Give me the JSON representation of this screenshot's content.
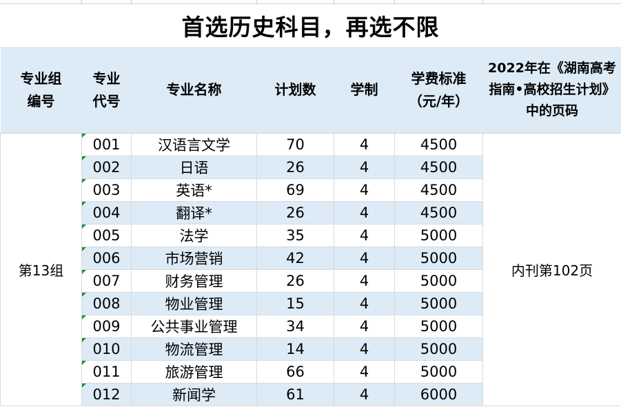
{
  "title": "首选历史科目，再选不限",
  "headers": {
    "group_no": "专业组编号",
    "code": "专业代号",
    "name": "专业名称",
    "plan": "计划数",
    "years": "学制",
    "fee": "学费标准（元/年）",
    "page": "2022年在《湖南高考指南•高校招生计划》中的页码"
  },
  "group": "第13组",
  "page_ref": "内刊第102页",
  "rows": [
    {
      "code": "001",
      "name": "汉语言文学",
      "plan": "70",
      "years": "4",
      "fee": "4500"
    },
    {
      "code": "002",
      "name": "日语",
      "plan": "26",
      "years": "4",
      "fee": "4500"
    },
    {
      "code": "003",
      "name": "英语*",
      "plan": "69",
      "years": "4",
      "fee": "4500"
    },
    {
      "code": "004",
      "name": "翻译*",
      "plan": "26",
      "years": "4",
      "fee": "4500"
    },
    {
      "code": "005",
      "name": "法学",
      "plan": "35",
      "years": "4",
      "fee": "5000"
    },
    {
      "code": "006",
      "name": "市场营销",
      "plan": "42",
      "years": "4",
      "fee": "5000"
    },
    {
      "code": "007",
      "name": "财务管理",
      "plan": "26",
      "years": "4",
      "fee": "5000"
    },
    {
      "code": "008",
      "name": "物业管理",
      "plan": "15",
      "years": "4",
      "fee": "5000"
    },
    {
      "code": "009",
      "name": "公共事业管理",
      "plan": "34",
      "years": "4",
      "fee": "5000"
    },
    {
      "code": "010",
      "name": "物流管理",
      "plan": "14",
      "years": "4",
      "fee": "5000"
    },
    {
      "code": "011",
      "name": "旅游管理",
      "plan": "66",
      "years": "4",
      "fee": "5000"
    },
    {
      "code": "012",
      "name": "新闻学",
      "plan": "61",
      "years": "4",
      "fee": "6000"
    }
  ]
}
